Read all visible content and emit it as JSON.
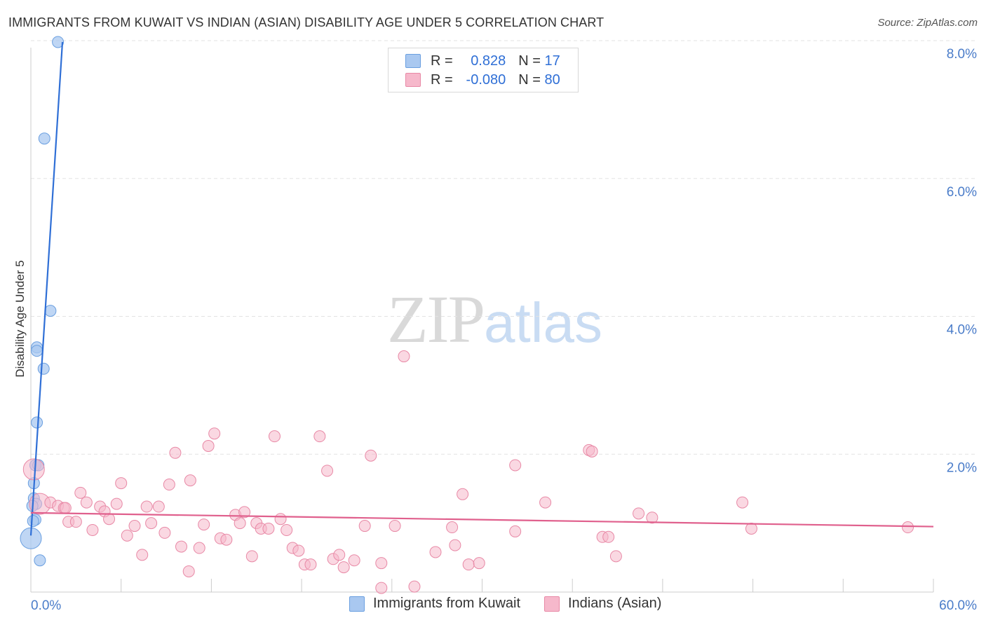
{
  "header": {
    "title": "IMMIGRANTS FROM KUWAIT VS INDIAN (ASIAN) DISABILITY AGE UNDER 5 CORRELATION CHART",
    "source": "Source: ZipAtlas.com"
  },
  "watermark": {
    "zip": "ZIP",
    "atlas": "atlas"
  },
  "legend": {
    "rows": [
      {
        "r_label": "R = ",
        "r_value": "0.828",
        "n_label": "N = ",
        "n_value": "17",
        "color": "#a9c8f0"
      },
      {
        "r_label": "R = ",
        "r_value": "-0.080",
        "n_label": "N = ",
        "n_value": "80",
        "color": "#f6b8cb"
      }
    ]
  },
  "chart_data": {
    "type": "scatter",
    "title": "IMMIGRANTS FROM KUWAIT VS INDIAN (ASIAN) DISABILITY AGE UNDER 5 CORRELATION CHART",
    "xlabel": "",
    "ylabel": "Disability Age Under 5",
    "xlim": [
      0,
      60
    ],
    "ylim": [
      0,
      8
    ],
    "x_tick_labels": [
      "0.0%",
      "60.0%"
    ],
    "y_ticks": [
      2,
      4,
      6,
      8
    ],
    "y_tick_labels": [
      "2.0%",
      "4.0%",
      "6.0%",
      "8.0%"
    ],
    "grid": true,
    "legend_position": "bottom",
    "series": [
      {
        "name": "Immigrants from Kuwait",
        "color": "#a9c8f0",
        "stroke": "#6a9fe0",
        "trend_color": "#2f6fd6",
        "trend": {
          "x": [
            0.0,
            2.1
          ],
          "y": [
            0.82,
            7.98
          ]
        },
        "points": [
          {
            "x": 1.8,
            "y": 7.98
          },
          {
            "x": 0.9,
            "y": 6.58
          },
          {
            "x": 1.3,
            "y": 4.08
          },
          {
            "x": 0.4,
            "y": 3.55
          },
          {
            "x": 0.4,
            "y": 3.5
          },
          {
            "x": 0.85,
            "y": 3.24
          },
          {
            "x": 0.4,
            "y": 2.46
          },
          {
            "x": 0.3,
            "y": 1.84
          },
          {
            "x": 0.5,
            "y": 1.84
          },
          {
            "x": 0.2,
            "y": 1.58
          },
          {
            "x": 0.2,
            "y": 1.36
          },
          {
            "x": 0.35,
            "y": 1.28
          },
          {
            "x": 0.1,
            "y": 1.25
          },
          {
            "x": 0.3,
            "y": 1.05
          },
          {
            "x": 0.15,
            "y": 1.03
          },
          {
            "x": 0.0,
            "y": 0.78,
            "size": "large"
          },
          {
            "x": 0.6,
            "y": 0.46
          }
        ]
      },
      {
        "name": "Indians (Asian)",
        "color": "#f6b8cb",
        "stroke": "#e889a6",
        "trend_color": "#e0608d",
        "trend": {
          "x": [
            0.0,
            60.0
          ],
          "y": [
            1.15,
            0.95
          ]
        },
        "points": [
          {
            "x": 0.2,
            "y": 1.78,
            "size": "large"
          },
          {
            "x": 0.6,
            "y": 1.28,
            "size": "large"
          },
          {
            "x": 1.3,
            "y": 1.3
          },
          {
            "x": 1.8,
            "y": 1.25
          },
          {
            "x": 2.2,
            "y": 1.22
          },
          {
            "x": 2.5,
            "y": 1.02
          },
          {
            "x": 3.0,
            "y": 1.02
          },
          {
            "x": 3.3,
            "y": 1.44
          },
          {
            "x": 3.7,
            "y": 1.3
          },
          {
            "x": 4.1,
            "y": 0.9
          },
          {
            "x": 4.6,
            "y": 1.24
          },
          {
            "x": 4.9,
            "y": 1.17
          },
          {
            "x": 5.2,
            "y": 1.06
          },
          {
            "x": 5.7,
            "y": 1.28
          },
          {
            "x": 6.0,
            "y": 1.58
          },
          {
            "x": 6.4,
            "y": 0.82
          },
          {
            "x": 6.9,
            "y": 0.96
          },
          {
            "x": 7.4,
            "y": 0.54
          },
          {
            "x": 7.7,
            "y": 1.24
          },
          {
            "x": 8.0,
            "y": 1.0
          },
          {
            "x": 8.5,
            "y": 1.24
          },
          {
            "x": 8.9,
            "y": 0.86
          },
          {
            "x": 9.2,
            "y": 1.56
          },
          {
            "x": 9.6,
            "y": 2.02
          },
          {
            "x": 10.0,
            "y": 0.66
          },
          {
            "x": 10.5,
            "y": 0.3
          },
          {
            "x": 10.6,
            "y": 1.62
          },
          {
            "x": 11.2,
            "y": 0.64
          },
          {
            "x": 11.5,
            "y": 0.98
          },
          {
            "x": 11.8,
            "y": 2.12
          },
          {
            "x": 12.2,
            "y": 2.3
          },
          {
            "x": 12.6,
            "y": 0.78
          },
          {
            "x": 13.0,
            "y": 0.76
          },
          {
            "x": 13.6,
            "y": 1.12
          },
          {
            "x": 13.9,
            "y": 1.0
          },
          {
            "x": 14.2,
            "y": 1.16
          },
          {
            "x": 14.7,
            "y": 0.52
          },
          {
            "x": 15.0,
            "y": 1.0
          },
          {
            "x": 15.3,
            "y": 0.92
          },
          {
            "x": 15.8,
            "y": 0.92
          },
          {
            "x": 16.2,
            "y": 2.26
          },
          {
            "x": 16.6,
            "y": 1.06
          },
          {
            "x": 17.0,
            "y": 0.9
          },
          {
            "x": 17.4,
            "y": 0.64
          },
          {
            "x": 17.8,
            "y": 0.6
          },
          {
            "x": 18.2,
            "y": 0.4
          },
          {
            "x": 18.6,
            "y": 0.4
          },
          {
            "x": 19.2,
            "y": 2.26
          },
          {
            "x": 19.7,
            "y": 1.76
          },
          {
            "x": 20.1,
            "y": 0.48
          },
          {
            "x": 20.5,
            "y": 0.54
          },
          {
            "x": 20.8,
            "y": 0.36
          },
          {
            "x": 21.5,
            "y": 0.46
          },
          {
            "x": 22.2,
            "y": 0.96
          },
          {
            "x": 22.6,
            "y": 1.98
          },
          {
            "x": 23.3,
            "y": 0.42
          },
          {
            "x": 23.3,
            "y": 0.06
          },
          {
            "x": 24.2,
            "y": 0.96
          },
          {
            "x": 24.8,
            "y": 3.42
          },
          {
            "x": 25.5,
            "y": 0.08
          },
          {
            "x": 26.9,
            "y": 0.58
          },
          {
            "x": 28.0,
            "y": 0.94
          },
          {
            "x": 28.2,
            "y": 0.68
          },
          {
            "x": 28.7,
            "y": 1.42
          },
          {
            "x": 29.1,
            "y": 0.4
          },
          {
            "x": 29.8,
            "y": 0.42
          },
          {
            "x": 32.2,
            "y": 1.84
          },
          {
            "x": 32.2,
            "y": 0.88
          },
          {
            "x": 34.2,
            "y": 1.3
          },
          {
            "x": 37.1,
            "y": 2.06
          },
          {
            "x": 37.3,
            "y": 2.04
          },
          {
            "x": 38.0,
            "y": 0.8
          },
          {
            "x": 38.4,
            "y": 0.8
          },
          {
            "x": 38.9,
            "y": 0.52
          },
          {
            "x": 40.4,
            "y": 1.14
          },
          {
            "x": 41.3,
            "y": 1.08
          },
          {
            "x": 47.3,
            "y": 1.3
          },
          {
            "x": 47.9,
            "y": 0.92
          },
          {
            "x": 58.3,
            "y": 0.94
          },
          {
            "x": 2.3,
            "y": 1.22
          }
        ]
      }
    ]
  }
}
